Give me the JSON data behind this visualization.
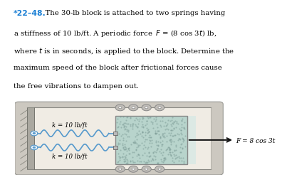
{
  "title_num": "*22–48.",
  "title_color": "#1a7fd4",
  "body_text": "  The 30-lb block is attached to two springs having\na stiffness of 10 lb/ft. A periodic force F = (8 cos 3t) lb,\nwhere t is in seconds, is applied to the block. Determine the\nmaximum speed of the block after frictional forces cause\nthe free vibrations to dampen out.",
  "panel_bg": "#d8d4cc",
  "panel_inner_bg": "#e8e4dc",
  "block_color": "#b8d4cc",
  "block_edge_color": "#888888",
  "spring_color": "#5599cc",
  "arrow_color": "#111111",
  "force_label": "F = 8 cos 3t",
  "spring_label_top": "k = 10 lb/ft",
  "spring_label_bot": "k = 10 lb/ft",
  "wheel_color": "#c0bdb8",
  "wheel_edge": "#888888",
  "wall_color": "#aaa8a0",
  "wall_hatch": "#888880"
}
